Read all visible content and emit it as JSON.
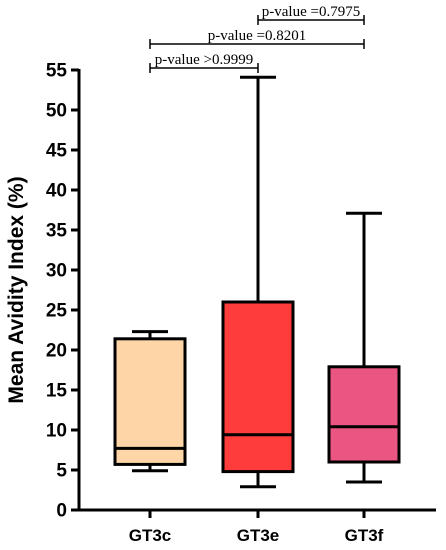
{
  "chart_data": {
    "type": "boxplot",
    "title": "",
    "xlabel": "",
    "ylabel": "Mean Avidity Index (%)",
    "ylim": [
      0,
      55
    ],
    "yticks": [
      0,
      5,
      10,
      15,
      20,
      25,
      30,
      35,
      40,
      45,
      50,
      55
    ],
    "grid": false,
    "categories": [
      "GT3c",
      "GT3e",
      "GT3f"
    ],
    "colors": [
      "#FDD5A6",
      "#FF3C3C",
      "#EB5581"
    ],
    "boxes": [
      {
        "category": "GT3c",
        "min": 4.9,
        "q1": 5.7,
        "median": 7.7,
        "q3": 21.4,
        "max": 22.3
      },
      {
        "category": "GT3e",
        "min": 2.9,
        "q1": 4.8,
        "median": 9.4,
        "q3": 26.0,
        "max": 54.1
      },
      {
        "category": "GT3f",
        "min": 3.5,
        "q1": 6.0,
        "median": 10.4,
        "q3": 17.9,
        "max": 37.1
      }
    ],
    "comparisons": [
      {
        "from": "GT3c",
        "to": "GT3e",
        "label": "p-value >0.9999"
      },
      {
        "from": "GT3c",
        "to": "GT3f",
        "label": "p-value =0.8201"
      },
      {
        "from": "GT3e",
        "to": "GT3f",
        "label": "p-value =0.7975"
      }
    ]
  }
}
